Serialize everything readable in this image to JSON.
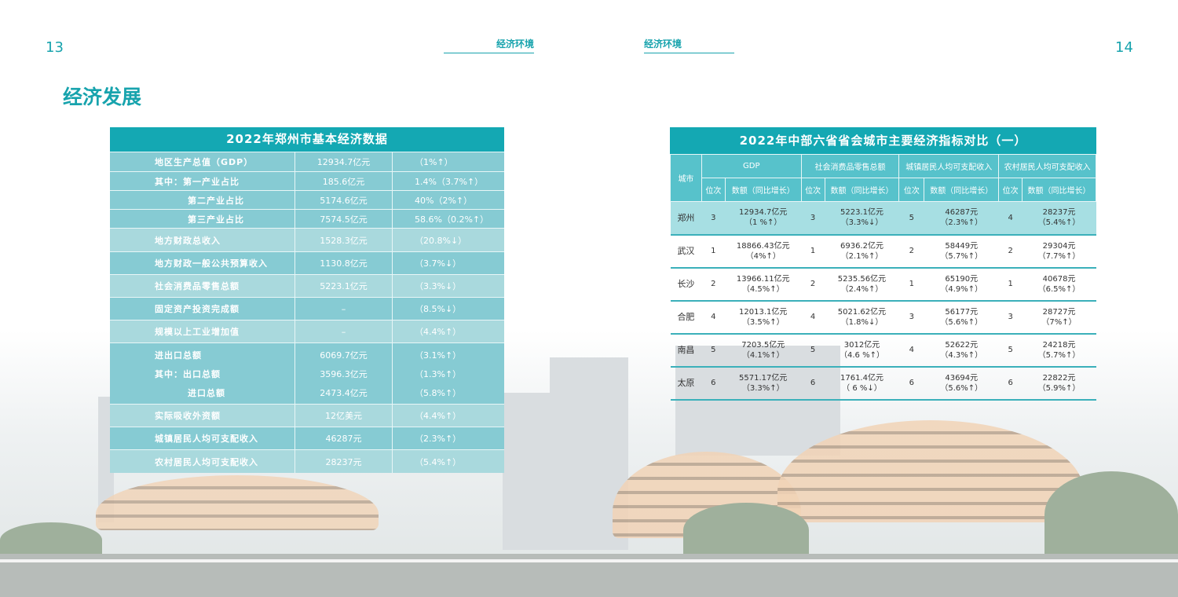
{
  "page": {
    "left_number": "13",
    "right_number": "14",
    "left_section": "经济环境",
    "right_section": "经济环境",
    "heading": "经济发展"
  },
  "left_table": {
    "title": "2022年郑州市基本经济数据",
    "rows": [
      {
        "lines": [
          [
            "地区生产总值（GDP）",
            "12934.7亿元",
            "（1%↑）"
          ]
        ]
      },
      {
        "lines": [
          [
            "其中：第一产业占比",
            "185.6亿元",
            "1.4%（3.7%↑）"
          ]
        ]
      },
      {
        "lines": [
          [
            "第二产业占比",
            "5174.6亿元",
            "40%（2%↑）"
          ]
        ],
        "indent": true
      },
      {
        "lines": [
          [
            "第三产业占比",
            "7574.5亿元",
            "58.6%（0.2%↑）"
          ]
        ],
        "indent": true
      },
      {
        "lines": [
          [
            "地方财政总收入",
            "1528.3亿元",
            "（20.8%↓）"
          ]
        ]
      },
      {
        "lines": [
          [
            "地方财政一般公共预算收入",
            "1130.8亿元",
            "（3.7%↓）"
          ]
        ]
      },
      {
        "lines": [
          [
            "社会消费品零售总额",
            "5223.1亿元",
            "（3.3%↓）"
          ]
        ]
      },
      {
        "lines": [
          [
            "固定资产投资完成额",
            "–",
            "（8.5%↓）"
          ]
        ]
      },
      {
        "lines": [
          [
            "规模以上工业增加值",
            "–",
            "（4.4%↑）"
          ]
        ]
      },
      {
        "lines": [
          [
            "进出口总额",
            "6069.7亿元",
            "（3.1%↑）"
          ],
          [
            "其中：出口总额",
            "3596.3亿元",
            "（1.3%↑）"
          ],
          [
            "进口总额",
            "2473.4亿元",
            "（5.8%↑）"
          ]
        ]
      },
      {
        "lines": [
          [
            "实际吸收外资额",
            "12亿美元",
            "（4.4%↑）"
          ]
        ]
      },
      {
        "lines": [
          [
            "城镇居民人均可支配收入",
            "46287元",
            "（2.3%↑）"
          ]
        ]
      },
      {
        "lines": [
          [
            "农村居民人均可支配收入",
            "28237元",
            "（5.4%↑）"
          ]
        ]
      }
    ]
  },
  "right_table": {
    "title": "2022年中部六省省会城市主要经济指标对比（一）",
    "city_header": "城市",
    "groups": [
      "GDP",
      "社会消费品零售总额",
      "城镇居民人均可支配收入",
      "农村居民人均可支配收入"
    ],
    "rank_label": "位次",
    "value_label": "数额（同比增长）",
    "rows": [
      {
        "city": "郑州",
        "highlight": true,
        "cells": [
          [
            "3",
            "12934.7亿元",
            "（1 %↑）"
          ],
          [
            "3",
            "5223.1亿元",
            "（3.3%↓）"
          ],
          [
            "5",
            "46287元",
            "（2.3%↑）"
          ],
          [
            "4",
            "28237元",
            "（5.4%↑）"
          ]
        ]
      },
      {
        "city": "武汉",
        "cells": [
          [
            "1",
            "18866.43亿元",
            "（4%↑）"
          ],
          [
            "1",
            "6936.2亿元",
            "（2.1%↑）"
          ],
          [
            "2",
            "58449元",
            "（5.7%↑）"
          ],
          [
            "2",
            "29304元",
            "（7.7%↑）"
          ]
        ]
      },
      {
        "city": "长沙",
        "cells": [
          [
            "2",
            "13966.11亿元",
            "（4.5%↑）"
          ],
          [
            "2",
            "5235.56亿元",
            "（2.4%↑）"
          ],
          [
            "1",
            "65190元",
            "（4.9%↑）"
          ],
          [
            "1",
            "40678元",
            "（6.5%↑）"
          ]
        ]
      },
      {
        "city": "合肥",
        "cells": [
          [
            "4",
            "12013.1亿元",
            "（3.5%↑）"
          ],
          [
            "4",
            "5021.62亿元",
            "（1.8%↓）"
          ],
          [
            "3",
            "56177元",
            "（5.6%↑）"
          ],
          [
            "3",
            "28727元",
            "（7%↑）"
          ]
        ]
      },
      {
        "city": "南昌",
        "cells": [
          [
            "5",
            "7203.5亿元",
            "（4.1%↑）"
          ],
          [
            "5",
            "3012亿元",
            "（4.6 %↑）"
          ],
          [
            "4",
            "52622元",
            "（4.3%↑）"
          ],
          [
            "5",
            "24218元",
            "（5.7%↑）"
          ]
        ]
      },
      {
        "city": "太原",
        "cells": [
          [
            "6",
            "5571.17亿元",
            "（3.3%↑）"
          ],
          [
            "6",
            "1761.4亿元",
            "（ 6 %↓）"
          ],
          [
            "6",
            "43694元",
            "（5.6%↑）"
          ],
          [
            "6",
            "22822元",
            "（5.9%↑）"
          ]
        ]
      }
    ]
  },
  "colors": {
    "accent": "#17a3ad",
    "title_bar": "#14a8b3",
    "row_dark": "#86cbd3",
    "row_light": "#a9d9dd",
    "highlight": "#a7dfe3"
  }
}
